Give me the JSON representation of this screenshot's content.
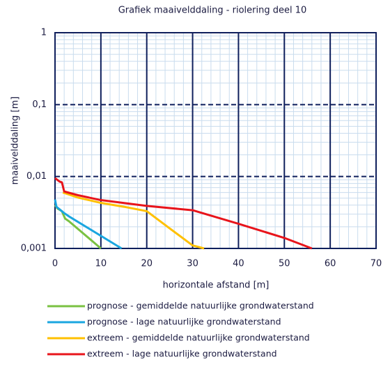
{
  "chart_data": {
    "type": "line",
    "title": "Grafiek maaivelddaling - riolering deel 10",
    "xlabel": "horizontale afstand [m]",
    "ylabel": "maaivelddaling [m]",
    "xlim": [
      0,
      70
    ],
    "xticks": [
      0,
      10,
      20,
      30,
      40,
      50,
      60,
      70
    ],
    "ylim": [
      0.001,
      1
    ],
    "yticks": [
      {
        "value": 0.001,
        "label": "0,001"
      },
      {
        "value": 0.01,
        "label": "0,01"
      },
      {
        "value": 0.1,
        "label": "0,1"
      },
      1
    ],
    "log_y": true,
    "grid": true,
    "series": [
      {
        "name": "prognose - gemiddelde natuurlijke grondwaterstand",
        "color": "#7ac142",
        "x": [
          0,
          0.5,
          1.5,
          2.2,
          3,
          10
        ],
        "values": [
          0.004,
          0.0036,
          0.0033,
          0.0026,
          0.0024,
          0.001
        ]
      },
      {
        "name": "prognose - lage natuurlijke grondwaterstand",
        "color": "#1aa6e0",
        "x": [
          0,
          0.3,
          1,
          2,
          3,
          14.5
        ],
        "values": [
          0.0048,
          0.0038,
          0.0035,
          0.0031,
          0.0028,
          0.001
        ]
      },
      {
        "name": "extreem - gemiddelde natuurlijke grondwaterstand",
        "color": "#ffc000",
        "x": [
          1.7,
          5,
          10,
          15,
          20,
          25,
          30,
          32.5
        ],
        "values": [
          0.006,
          0.0051,
          0.0043,
          0.0038,
          0.0033,
          0.0019,
          0.0011,
          0.001
        ]
      },
      {
        "name": "extreem - lage natuurlijke grondwaterstand",
        "color": "#e8141b",
        "x": [
          0,
          1,
          1.5,
          2,
          5,
          10,
          20,
          30,
          40,
          50,
          56
        ],
        "values": [
          0.0095,
          0.0085,
          0.0083,
          0.0062,
          0.0055,
          0.0047,
          0.0039,
          0.0034,
          0.0022,
          0.0014,
          0.001
        ]
      }
    ]
  }
}
